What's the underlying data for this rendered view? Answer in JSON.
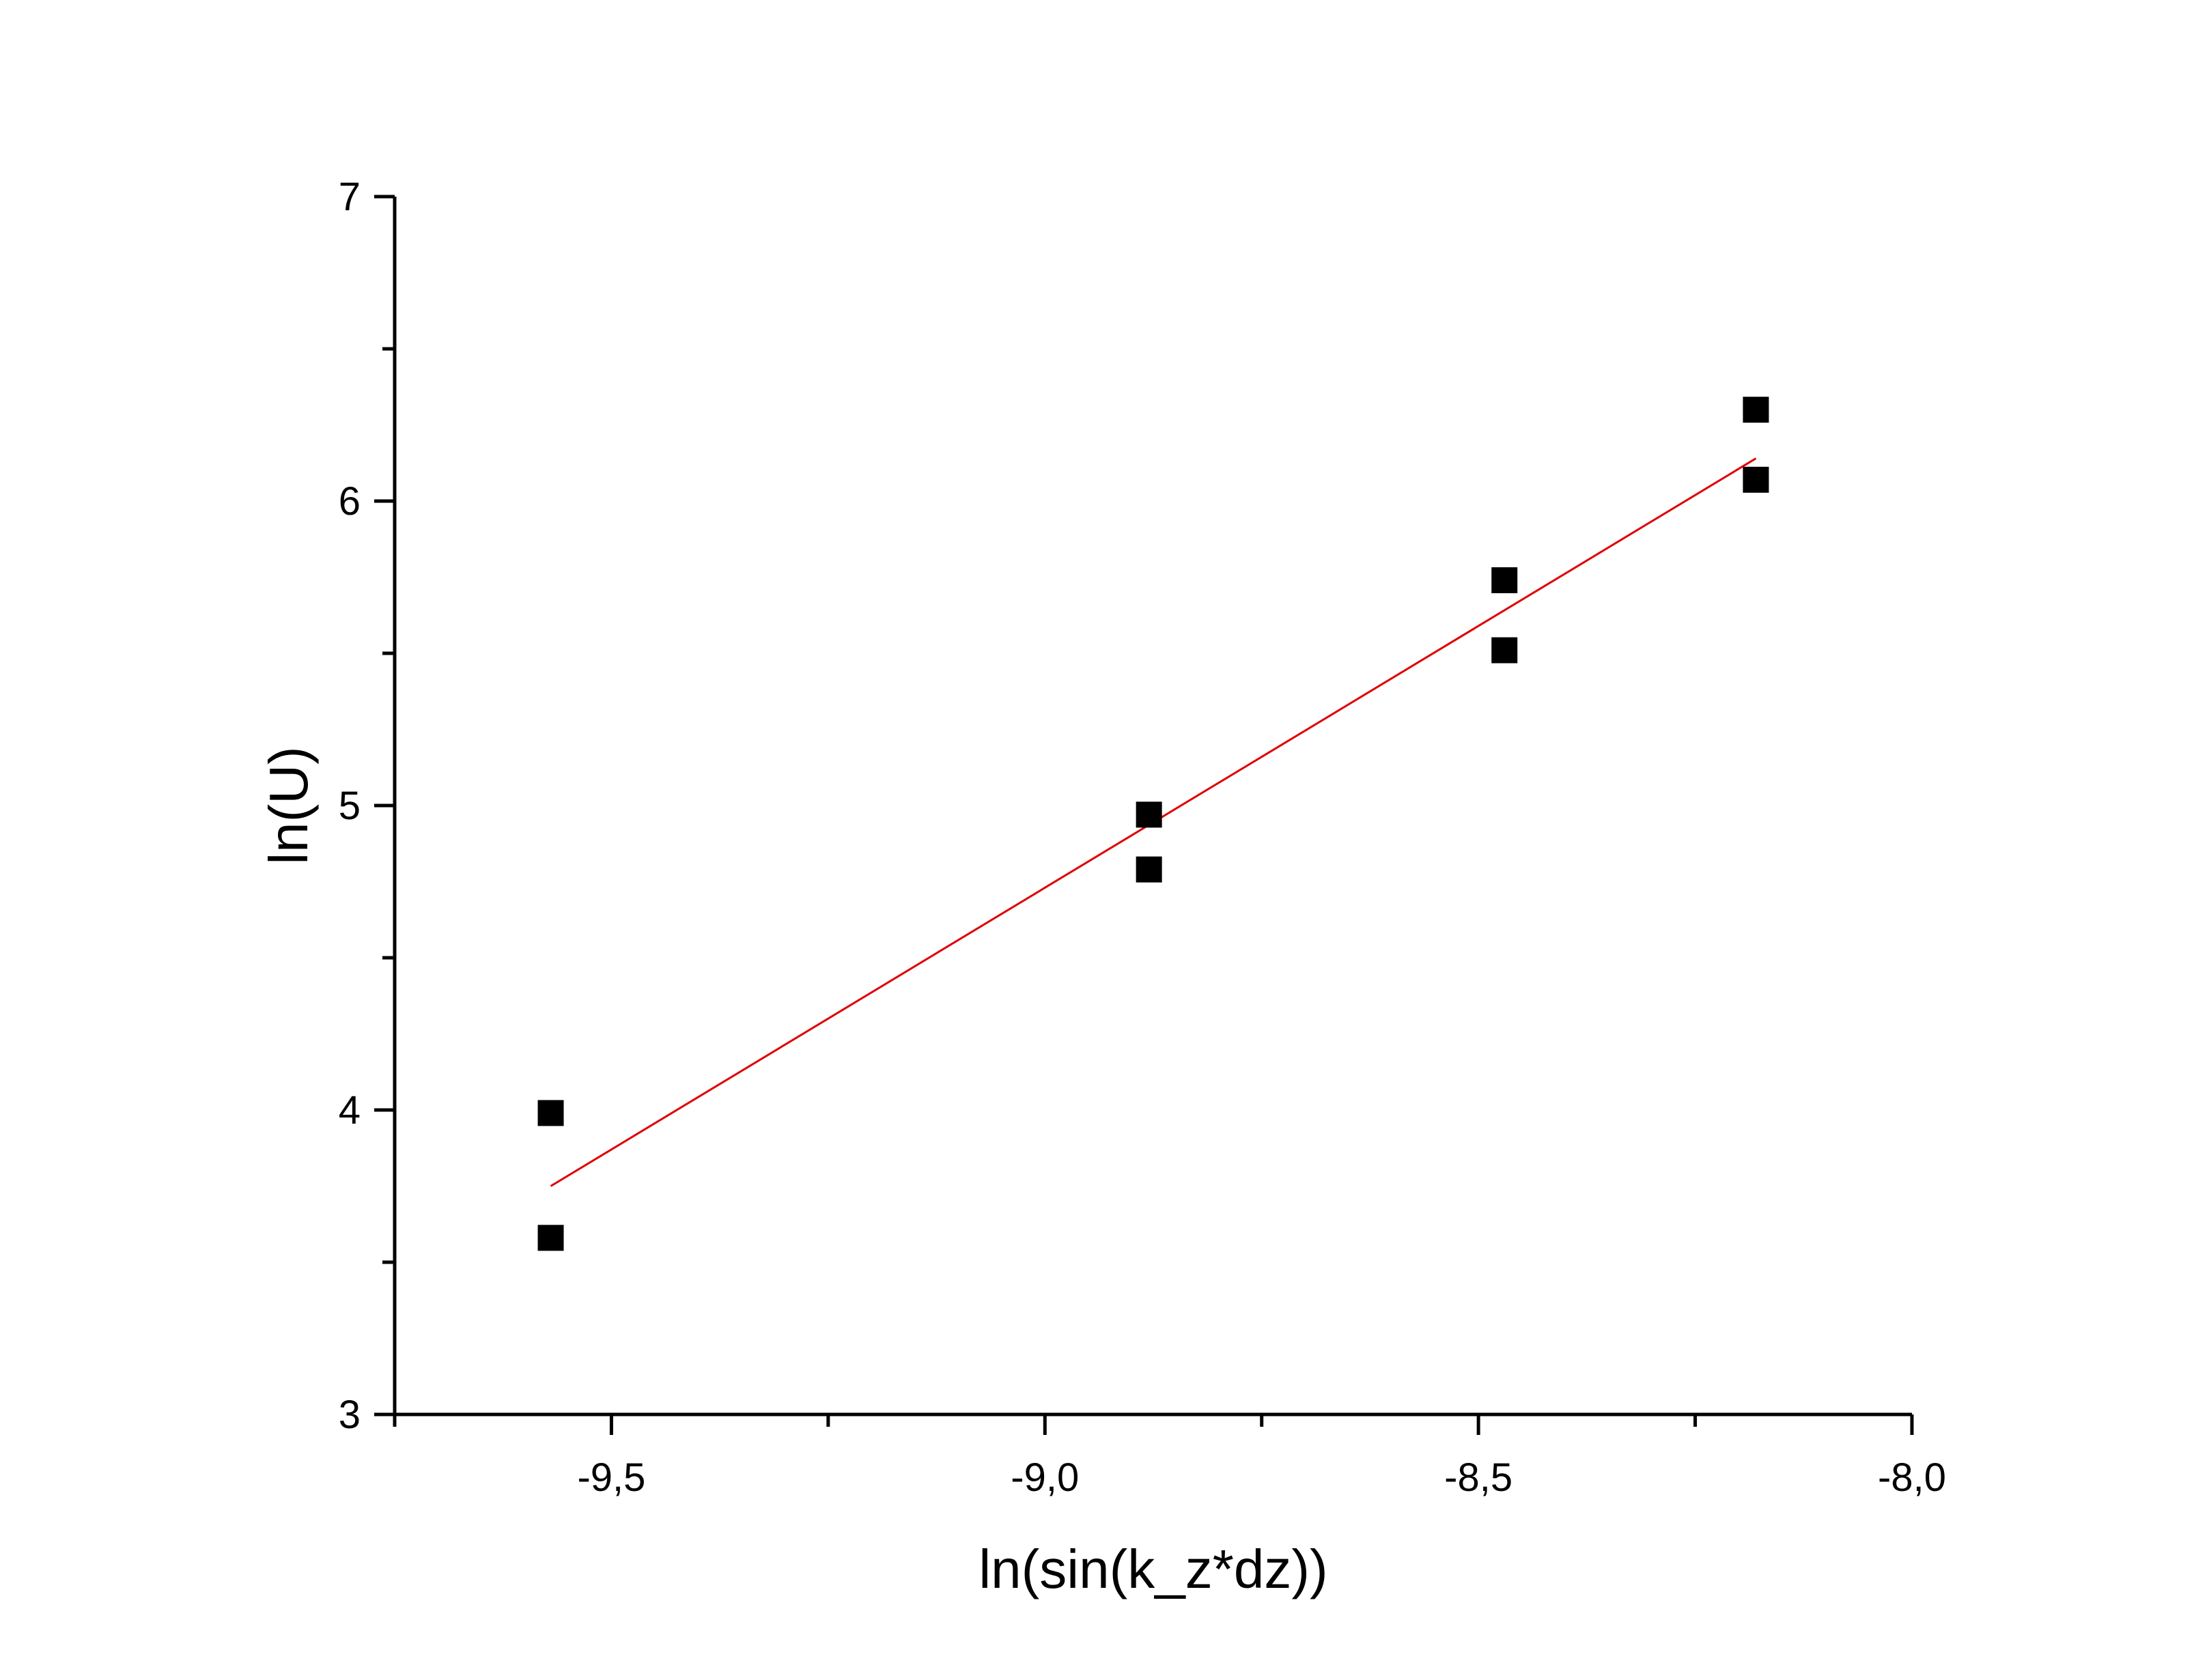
{
  "chart_data": {
    "type": "scatter",
    "title": "",
    "xlabel": "ln(sin(k_z*dz))",
    "ylabel": "ln(U)",
    "xlim": [
      -9.75,
      -8.0
    ],
    "ylim": [
      3,
      7
    ],
    "x_ticks": [
      -9.5,
      -9.0,
      -8.5,
      -8.0
    ],
    "x_tick_labels": [
      "-9,5",
      "-9,0",
      "-8,5",
      "-8,0"
    ],
    "y_ticks": [
      3,
      4,
      5,
      6,
      7
    ],
    "y_tick_labels": [
      "3",
      "4",
      "5",
      "6",
      "7"
    ],
    "grid": false,
    "legend": "none",
    "series": [
      {
        "marker": "square",
        "color": "#000000",
        "x": [
          -9.57,
          -9.57,
          -8.88,
          -8.88,
          -8.47,
          -8.47,
          -8.18,
          -8.18
        ],
        "y": [
          3.99,
          3.58,
          4.97,
          4.79,
          5.74,
          5.51,
          6.3,
          6.07
        ]
      }
    ],
    "fit_line": {
      "type": "linear",
      "color": "#e00000",
      "x": [
        -9.57,
        -8.18
      ],
      "y": [
        3.75,
        6.14
      ]
    }
  }
}
